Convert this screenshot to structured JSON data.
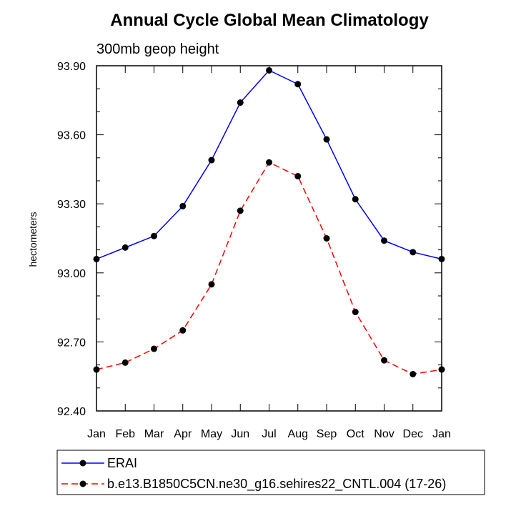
{
  "chart_data": {
    "type": "line",
    "title": "Annual Cycle Global Mean Climatology",
    "subtitle": "300mb geop height",
    "xlabel": "",
    "ylabel": "hectometers",
    "categories": [
      "Jan",
      "Feb",
      "Mar",
      "Apr",
      "May",
      "Jun",
      "Jul",
      "Aug",
      "Sep",
      "Oct",
      "Nov",
      "Dec",
      "Jan"
    ],
    "ylim": [
      92.4,
      93.9
    ],
    "yticks": [
      92.4,
      92.7,
      93.0,
      93.3,
      93.6,
      93.9
    ],
    "ytick_labels": [
      "92.40",
      "92.70",
      "93.00",
      "93.30",
      "93.60",
      "93.90"
    ],
    "series": [
      {
        "name": "ERAI",
        "color": "#0000ff",
        "line_style": "solid",
        "marker": "filled-circle",
        "values": [
          93.06,
          93.11,
          93.16,
          93.29,
          93.49,
          93.74,
          93.88,
          93.82,
          93.58,
          93.32,
          93.14,
          93.09,
          93.06
        ]
      },
      {
        "name": "b.e13.B1850C5CN.ne30_g16.sehires22_CNTL.004 (17-26)",
        "color": "#ff0000",
        "line_style": "dashed",
        "marker": "filled-circle",
        "values": [
          92.58,
          92.61,
          92.67,
          92.75,
          92.95,
          93.27,
          93.48,
          93.42,
          93.15,
          92.83,
          92.62,
          92.56,
          92.58
        ]
      }
    ],
    "grid": false,
    "legend_position": "bottom"
  }
}
